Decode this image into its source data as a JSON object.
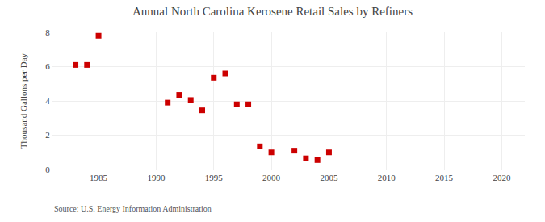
{
  "chart_data": {
    "type": "scatter",
    "title": "Annual North Carolina Kerosene Retail Sales by Refiners",
    "ylabel": "Thousand Gallons per Day",
    "annotations": [
      "Source: U.S. Energy Information Administration"
    ],
    "x": [
      1983,
      1984,
      1985,
      1991,
      1992,
      1993,
      1994,
      1995,
      1996,
      1997,
      1998,
      1999,
      2000,
      2002,
      2003,
      2004,
      2005
    ],
    "values": [
      6.1,
      6.1,
      7.8,
      3.9,
      4.35,
      4.05,
      3.45,
      5.35,
      5.6,
      3.8,
      3.8,
      1.35,
      1.0,
      1.1,
      0.65,
      0.55,
      1.0
    ],
    "color": "#cc0000",
    "marker": "square",
    "xlim": [
      1981,
      2022
    ],
    "ylim": [
      0,
      8
    ],
    "xticks": [
      1985,
      1990,
      1995,
      2000,
      2005,
      2010,
      2015,
      2020
    ],
    "yticks": [
      0,
      2,
      4,
      6,
      8
    ],
    "grid": true
  }
}
